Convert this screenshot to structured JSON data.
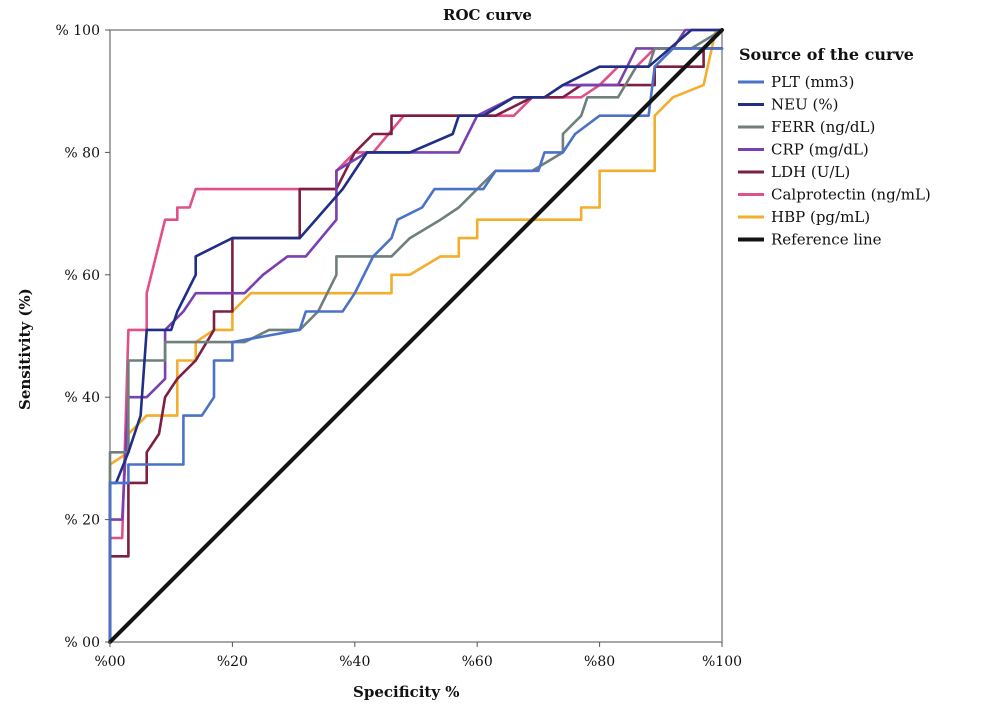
{
  "chart_data": {
    "type": "line",
    "title": "ROC curve",
    "xlabel": "Specificity %",
    "ylabel": "Sensitivity (%)",
    "xlim": [
      0,
      100
    ],
    "ylim": [
      0,
      100
    ],
    "x_ticks": [
      0,
      20,
      40,
      60,
      80,
      100
    ],
    "x_tick_labels": [
      "%00",
      "%20",
      "%40",
      "%60",
      "%80",
      "%100"
    ],
    "y_ticks": [
      0,
      20,
      40,
      60,
      80,
      100
    ],
    "y_tick_labels": [
      "% 00",
      "% 20",
      "% 40",
      "% 60",
      "% 80",
      "% 100"
    ],
    "legend_title": "Source of the curve",
    "legend_position": "right",
    "series": [
      {
        "name": "PLT (mm3)",
        "color": "#4a72c8",
        "points": [
          [
            0,
            0
          ],
          [
            0,
            26
          ],
          [
            3,
            26
          ],
          [
            3,
            29
          ],
          [
            12,
            29
          ],
          [
            12,
            37
          ],
          [
            15,
            37
          ],
          [
            17,
            40
          ],
          [
            17,
            46
          ],
          [
            20,
            46
          ],
          [
            20,
            49
          ],
          [
            31,
            51
          ],
          [
            32,
            54
          ],
          [
            38,
            54
          ],
          [
            40,
            57
          ],
          [
            43,
            63
          ],
          [
            46,
            66
          ],
          [
            47,
            69
          ],
          [
            51,
            71
          ],
          [
            53,
            74
          ],
          [
            61,
            74
          ],
          [
            63,
            77
          ],
          [
            70,
            77
          ],
          [
            71,
            80
          ],
          [
            74,
            80
          ],
          [
            76,
            83
          ],
          [
            80,
            86
          ],
          [
            88,
            86
          ],
          [
            89,
            94
          ],
          [
            92,
            97
          ],
          [
            97,
            97
          ],
          [
            100,
            97
          ]
        ]
      },
      {
        "name": "NEU (%)",
        "color": "#1f2f86",
        "points": [
          [
            0,
            0
          ],
          [
            0,
            26
          ],
          [
            1,
            26
          ],
          [
            3,
            31
          ],
          [
            5,
            37
          ],
          [
            6,
            51
          ],
          [
            10,
            51
          ],
          [
            11,
            54
          ],
          [
            14,
            60
          ],
          [
            14,
            63
          ],
          [
            20,
            66
          ],
          [
            31,
            66
          ],
          [
            38,
            74
          ],
          [
            42,
            80
          ],
          [
            49,
            80
          ],
          [
            56,
            83
          ],
          [
            57,
            86
          ],
          [
            61,
            86
          ],
          [
            66,
            89
          ],
          [
            71,
            89
          ],
          [
            74,
            91
          ],
          [
            80,
            94
          ],
          [
            88,
            94
          ],
          [
            95,
            100
          ],
          [
            100,
            100
          ]
        ]
      },
      {
        "name": "FERR (ng/dL)",
        "color": "#6f7f7c",
        "points": [
          [
            0,
            0
          ],
          [
            0,
            31
          ],
          [
            3,
            31
          ],
          [
            3,
            46
          ],
          [
            9,
            46
          ],
          [
            9,
            49
          ],
          [
            22,
            49
          ],
          [
            26,
            51
          ],
          [
            31,
            51
          ],
          [
            34,
            54
          ],
          [
            37,
            60
          ],
          [
            37,
            63
          ],
          [
            46,
            63
          ],
          [
            49,
            66
          ],
          [
            54,
            69
          ],
          [
            57,
            71
          ],
          [
            60,
            74
          ],
          [
            63,
            77
          ],
          [
            69,
            77
          ],
          [
            74,
            80
          ],
          [
            74,
            83
          ],
          [
            77,
            86
          ],
          [
            78,
            89
          ],
          [
            83,
            89
          ],
          [
            86,
            94
          ],
          [
            88,
            94
          ],
          [
            89,
            97
          ],
          [
            95,
            97
          ],
          [
            100,
            100
          ]
        ]
      },
      {
        "name": "CRP (mg/dL)",
        "color": "#7a3fb0",
        "points": [
          [
            0,
            0
          ],
          [
            0,
            20
          ],
          [
            2,
            20
          ],
          [
            3,
            40
          ],
          [
            6,
            40
          ],
          [
            9,
            43
          ],
          [
            9,
            51
          ],
          [
            12,
            54
          ],
          [
            14,
            57
          ],
          [
            22,
            57
          ],
          [
            25,
            60
          ],
          [
            29,
            63
          ],
          [
            32,
            63
          ],
          [
            37,
            69
          ],
          [
            37,
            77
          ],
          [
            42,
            80
          ],
          [
            57,
            80
          ],
          [
            60,
            86
          ],
          [
            66,
            89
          ],
          [
            71,
            89
          ],
          [
            74,
            91
          ],
          [
            83,
            91
          ],
          [
            86,
            97
          ],
          [
            92,
            97
          ],
          [
            94,
            100
          ],
          [
            100,
            100
          ]
        ]
      },
      {
        "name": "LDH (U/L)",
        "color": "#7d1e43",
        "points": [
          [
            0,
            0
          ],
          [
            0,
            14
          ],
          [
            3,
            14
          ],
          [
            3,
            26
          ],
          [
            6,
            26
          ],
          [
            6,
            31
          ],
          [
            8,
            34
          ],
          [
            9,
            40
          ],
          [
            11,
            43
          ],
          [
            14,
            46
          ],
          [
            17,
            51
          ],
          [
            17,
            54
          ],
          [
            20,
            54
          ],
          [
            20,
            66
          ],
          [
            31,
            66
          ],
          [
            31,
            74
          ],
          [
            37,
            74
          ],
          [
            40,
            80
          ],
          [
            43,
            83
          ],
          [
            46,
            83
          ],
          [
            46,
            86
          ],
          [
            63,
            86
          ],
          [
            69,
            89
          ],
          [
            74,
            89
          ],
          [
            77,
            91
          ],
          [
            89,
            91
          ],
          [
            89,
            94
          ],
          [
            97,
            94
          ],
          [
            97,
            97
          ],
          [
            100,
            97
          ]
        ]
      },
      {
        "name": "Calprotectin (ng/mL)",
        "color": "#e0508a",
        "points": [
          [
            0,
            0
          ],
          [
            0,
            17
          ],
          [
            2,
            17
          ],
          [
            3,
            51
          ],
          [
            6,
            51
          ],
          [
            6,
            57
          ],
          [
            9,
            69
          ],
          [
            11,
            69
          ],
          [
            11,
            71
          ],
          [
            13,
            71
          ],
          [
            14,
            74
          ],
          [
            37,
            74
          ],
          [
            37,
            77
          ],
          [
            40,
            80
          ],
          [
            43,
            80
          ],
          [
            48,
            86
          ],
          [
            66,
            86
          ],
          [
            69,
            89
          ],
          [
            77,
            89
          ],
          [
            80,
            91
          ],
          [
            83,
            94
          ],
          [
            86,
            94
          ],
          [
            89,
            97
          ],
          [
            97,
            97
          ],
          [
            100,
            100
          ]
        ]
      },
      {
        "name": "HBP (pg/mL)",
        "color": "#f2ae2c",
        "points": [
          [
            0,
            0
          ],
          [
            0,
            29
          ],
          [
            3,
            31
          ],
          [
            3,
            34
          ],
          [
            6,
            37
          ],
          [
            11,
            37
          ],
          [
            11,
            46
          ],
          [
            14,
            46
          ],
          [
            14,
            49
          ],
          [
            17,
            51
          ],
          [
            20,
            51
          ],
          [
            20,
            54
          ],
          [
            23,
            57
          ],
          [
            46,
            57
          ],
          [
            46,
            60
          ],
          [
            49,
            60
          ],
          [
            54,
            63
          ],
          [
            57,
            63
          ],
          [
            57,
            66
          ],
          [
            60,
            66
          ],
          [
            60,
            69
          ],
          [
            77,
            69
          ],
          [
            77,
            71
          ],
          [
            80,
            71
          ],
          [
            80,
            77
          ],
          [
            89,
            77
          ],
          [
            89,
            86
          ],
          [
            92,
            89
          ],
          [
            97,
            91
          ],
          [
            99,
            100
          ],
          [
            100,
            100
          ]
        ]
      },
      {
        "name": "Reference line",
        "color": "#141414",
        "points": [
          [
            0,
            0
          ],
          [
            100,
            100
          ]
        ],
        "reference": true
      }
    ]
  }
}
